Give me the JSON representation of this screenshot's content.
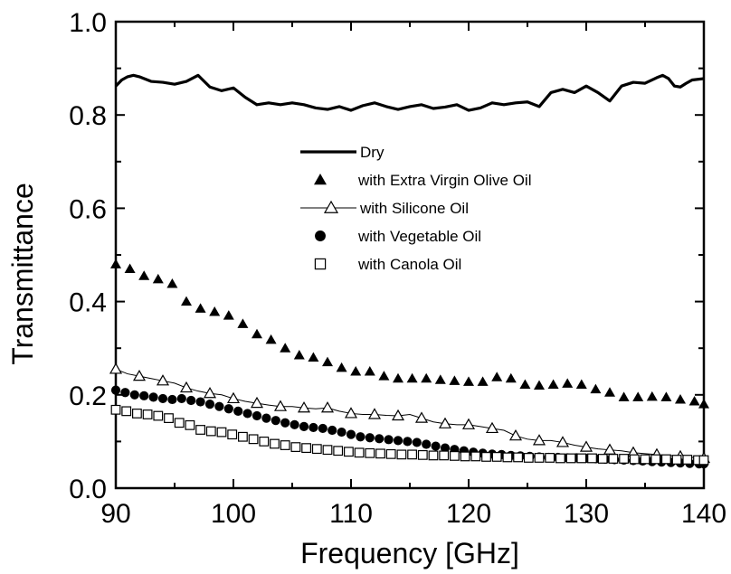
{
  "chart_data": {
    "type": "line",
    "xlabel": "Frequency [GHz]",
    "ylabel": "Transmittance",
    "xlim": [
      90,
      140
    ],
    "ylim": [
      0.0,
      1.0
    ],
    "x_ticks": [
      90,
      100,
      110,
      120,
      130,
      140
    ],
    "y_ticks": [
      "0.0",
      "0.2",
      "0.4",
      "0.6",
      "0.8",
      "1.0"
    ],
    "grid": false,
    "legend_position": "center",
    "series": [
      {
        "name": "Dry",
        "style": "line",
        "color": "#000000",
        "x": [
          90,
          90.5,
          91,
          91.5,
          92,
          93,
          94,
          95,
          96,
          97,
          98,
          99,
          100,
          101,
          102,
          103,
          104,
          105,
          106,
          107,
          108,
          109,
          110,
          111,
          112,
          113,
          114,
          115,
          116,
          117,
          118,
          119,
          120,
          121,
          122,
          123,
          124,
          125,
          126,
          127,
          128,
          129,
          130,
          131,
          132,
          133,
          134,
          135,
          136,
          136.5,
          137,
          137.5,
          138,
          138.5,
          139,
          140
        ],
        "y": [
          0.862,
          0.875,
          0.882,
          0.885,
          0.882,
          0.872,
          0.87,
          0.866,
          0.872,
          0.885,
          0.86,
          0.852,
          0.858,
          0.838,
          0.822,
          0.826,
          0.822,
          0.826,
          0.822,
          0.815,
          0.812,
          0.818,
          0.81,
          0.82,
          0.826,
          0.818,
          0.812,
          0.818,
          0.822,
          0.814,
          0.817,
          0.822,
          0.81,
          0.815,
          0.826,
          0.822,
          0.826,
          0.828,
          0.818,
          0.848,
          0.855,
          0.848,
          0.862,
          0.848,
          0.83,
          0.862,
          0.87,
          0.868,
          0.88,
          0.885,
          0.878,
          0.862,
          0.86,
          0.868,
          0.875,
          0.878
        ]
      },
      {
        "name": "with Extra Virgin Olive Oil",
        "style": "filled-triangle",
        "color": "#000000",
        "x": [
          90.0,
          91.2,
          92.4,
          93.6,
          94.8,
          96.0,
          97.2,
          98.4,
          99.6,
          100.8,
          102.0,
          103.2,
          104.4,
          105.6,
          106.8,
          108.0,
          109.2,
          110.4,
          111.6,
          112.8,
          114.0,
          115.2,
          116.4,
          117.6,
          118.8,
          120.0,
          121.2,
          122.4,
          123.6,
          124.8,
          126.0,
          127.2,
          128.4,
          129.6,
          130.8,
          132.0,
          133.2,
          134.4,
          135.6,
          136.8,
          138.0,
          139.2,
          140.0
        ],
        "y": [
          0.48,
          0.47,
          0.455,
          0.448,
          0.438,
          0.4,
          0.385,
          0.378,
          0.37,
          0.352,
          0.33,
          0.318,
          0.3,
          0.285,
          0.28,
          0.27,
          0.258,
          0.25,
          0.25,
          0.24,
          0.235,
          0.235,
          0.235,
          0.232,
          0.23,
          0.228,
          0.228,
          0.238,
          0.235,
          0.222,
          0.22,
          0.222,
          0.224,
          0.222,
          0.212,
          0.205,
          0.195,
          0.195,
          0.196,
          0.195,
          0.19,
          0.186,
          0.18
        ]
      },
      {
        "name": "with Silicone Oil",
        "style": "line-open-triangle",
        "color": "#000000",
        "x": [
          90,
          91,
          92,
          93,
          94,
          95,
          96,
          97,
          98,
          99,
          100,
          101,
          102,
          103,
          104,
          105,
          106,
          107,
          108,
          109,
          110,
          111,
          112,
          113,
          114,
          115,
          116,
          117,
          118,
          119,
          120,
          121,
          122,
          123,
          124,
          125,
          126,
          127,
          128,
          129,
          130,
          131,
          132,
          133,
          134,
          135,
          136,
          137,
          138,
          139,
          140
        ],
        "y": [
          0.255,
          0.245,
          0.24,
          0.235,
          0.23,
          0.225,
          0.215,
          0.208,
          0.203,
          0.2,
          0.192,
          0.186,
          0.182,
          0.178,
          0.175,
          0.175,
          0.172,
          0.17,
          0.172,
          0.165,
          0.16,
          0.158,
          0.158,
          0.156,
          0.155,
          0.158,
          0.15,
          0.142,
          0.138,
          0.136,
          0.136,
          0.132,
          0.128,
          0.124,
          0.112,
          0.105,
          0.102,
          0.102,
          0.098,
          0.092,
          0.088,
          0.084,
          0.082,
          0.08,
          0.076,
          0.074,
          0.072,
          0.07,
          0.068,
          0.066,
          0.064
        ]
      },
      {
        "name": "with Vegetable Oil",
        "style": "filled-circle",
        "color": "#000000",
        "x": [
          90.0,
          90.8,
          91.6,
          92.4,
          93.2,
          94.0,
          94.8,
          95.6,
          96.4,
          97.2,
          98.0,
          98.8,
          99.6,
          100.4,
          101.2,
          102.0,
          102.8,
          103.6,
          104.4,
          105.2,
          106.0,
          106.8,
          107.6,
          108.4,
          109.2,
          110.0,
          110.8,
          111.6,
          112.4,
          113.2,
          114.0,
          114.8,
          115.6,
          116.4,
          117.2,
          118.0,
          118.8,
          119.6,
          120.4,
          121.2,
          122.0,
          122.8,
          123.6,
          124.4,
          125.2,
          126.0,
          126.8,
          127.6,
          128.4,
          129.2,
          130.0,
          130.8,
          131.6,
          132.4,
          133.2,
          134.0,
          134.8,
          135.6,
          136.4,
          137.2,
          138.0,
          138.8,
          139.6,
          140.0
        ],
        "y": [
          0.21,
          0.205,
          0.2,
          0.198,
          0.195,
          0.192,
          0.19,
          0.192,
          0.188,
          0.185,
          0.18,
          0.175,
          0.17,
          0.165,
          0.16,
          0.155,
          0.15,
          0.145,
          0.14,
          0.136,
          0.132,
          0.13,
          0.128,
          0.124,
          0.12,
          0.115,
          0.11,
          0.108,
          0.106,
          0.104,
          0.102,
          0.1,
          0.098,
          0.094,
          0.09,
          0.086,
          0.083,
          0.08,
          0.077,
          0.075,
          0.073,
          0.072,
          0.07,
          0.069,
          0.068,
          0.067,
          0.066,
          0.066,
          0.065,
          0.065,
          0.064,
          0.063,
          0.062,
          0.061,
          0.06,
          0.059,
          0.058,
          0.057,
          0.056,
          0.055,
          0.054,
          0.053,
          0.052,
          0.052
        ]
      },
      {
        "name": "with Canola Oil",
        "style": "open-square",
        "color": "#000000",
        "x": [
          90.0,
          90.9,
          91.8,
          92.7,
          93.6,
          94.5,
          95.4,
          96.3,
          97.2,
          98.1,
          99.0,
          99.9,
          100.8,
          101.7,
          102.6,
          103.5,
          104.4,
          105.3,
          106.2,
          107.1,
          108.0,
          108.9,
          109.8,
          110.7,
          111.6,
          112.5,
          113.4,
          114.3,
          115.2,
          116.1,
          117.0,
          117.9,
          118.8,
          119.7,
          120.6,
          121.5,
          122.4,
          123.3,
          124.2,
          125.1,
          126.0,
          126.9,
          127.8,
          128.7,
          129.6,
          130.5,
          131.4,
          132.3,
          133.2,
          134.1,
          135.0,
          135.9,
          136.8,
          137.7,
          138.6,
          139.5,
          140.0
        ],
        "y": [
          0.168,
          0.165,
          0.16,
          0.158,
          0.155,
          0.15,
          0.14,
          0.135,
          0.125,
          0.122,
          0.12,
          0.115,
          0.11,
          0.105,
          0.1,
          0.095,
          0.092,
          0.088,
          0.086,
          0.084,
          0.082,
          0.08,
          0.078,
          0.076,
          0.075,
          0.074,
          0.073,
          0.072,
          0.072,
          0.071,
          0.07,
          0.07,
          0.069,
          0.068,
          0.068,
          0.067,
          0.067,
          0.066,
          0.066,
          0.065,
          0.065,
          0.065,
          0.064,
          0.064,
          0.064,
          0.064,
          0.063,
          0.063,
          0.063,
          0.062,
          0.062,
          0.062,
          0.062,
          0.061,
          0.061,
          0.06,
          0.06
        ]
      }
    ]
  }
}
